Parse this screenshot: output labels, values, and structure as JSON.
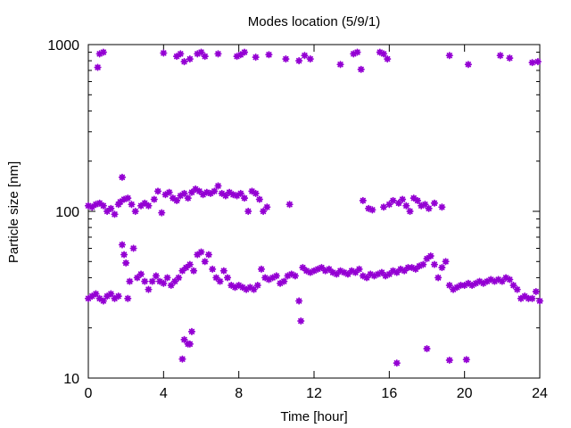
{
  "chart_data": {
    "type": "scatter",
    "title": "Modes location (5/9/1)",
    "xlabel": "Time [hour]",
    "ylabel": "Particle size [nm]",
    "xlim": [
      0,
      24
    ],
    "ylim": [
      10,
      1000
    ],
    "yscale": "log",
    "grid": false,
    "x_ticks": [
      0,
      4,
      8,
      12,
      16,
      20,
      24
    ],
    "x_tick_labels": [
      "0",
      "4",
      "8",
      "12",
      "16",
      "20",
      "24"
    ],
    "y_ticks": [
      10,
      100,
      1000
    ],
    "y_tick_labels": [
      "10",
      "100",
      "1000"
    ],
    "marker_color": "#9400d3",
    "series": [
      {
        "points": [
          [
            0.5,
            730
          ],
          [
            0.6,
            880
          ],
          [
            0.8,
            900
          ],
          [
            4.0,
            890
          ],
          [
            4.7,
            850
          ],
          [
            4.9,
            880
          ],
          [
            5.1,
            790
          ],
          [
            5.4,
            820
          ],
          [
            5.8,
            880
          ],
          [
            6.0,
            900
          ],
          [
            6.2,
            850
          ],
          [
            6.9,
            880
          ],
          [
            7.9,
            850
          ],
          [
            8.1,
            870
          ],
          [
            8.3,
            900
          ],
          [
            8.9,
            840
          ],
          [
            9.6,
            870
          ],
          [
            10.5,
            820
          ],
          [
            11.2,
            800
          ],
          [
            11.5,
            860
          ],
          [
            11.8,
            820
          ],
          [
            13.4,
            760
          ],
          [
            14.1,
            880
          ],
          [
            14.3,
            900
          ],
          [
            14.5,
            710
          ],
          [
            15.5,
            900
          ],
          [
            15.7,
            880
          ],
          [
            15.9,
            820
          ],
          [
            19.2,
            860
          ],
          [
            20.2,
            760
          ],
          [
            21.9,
            860
          ],
          [
            22.4,
            830
          ],
          [
            23.6,
            780
          ],
          [
            23.9,
            790
          ],
          [
            0.0,
            108
          ],
          [
            0.2,
            106
          ],
          [
            0.4,
            110
          ],
          [
            0.6,
            112
          ],
          [
            0.8,
            108
          ],
          [
            1.0,
            100
          ],
          [
            1.2,
            104
          ],
          [
            1.4,
            96
          ],
          [
            1.6,
            110
          ],
          [
            1.7,
            114
          ],
          [
            1.8,
            160
          ],
          [
            1.9,
            118
          ],
          [
            2.1,
            120
          ],
          [
            2.3,
            110
          ],
          [
            2.5,
            100
          ],
          [
            2.8,
            108
          ],
          [
            3.0,
            112
          ],
          [
            3.2,
            108
          ],
          [
            3.5,
            118
          ],
          [
            3.7,
            132
          ],
          [
            3.9,
            98
          ],
          [
            4.1,
            126
          ],
          [
            4.3,
            130
          ],
          [
            4.5,
            120
          ],
          [
            4.7,
            116
          ],
          [
            4.9,
            124
          ],
          [
            5.1,
            128
          ],
          [
            5.3,
            120
          ],
          [
            5.5,
            130
          ],
          [
            5.7,
            136
          ],
          [
            5.9,
            132
          ],
          [
            6.1,
            126
          ],
          [
            6.3,
            130
          ],
          [
            6.5,
            128
          ],
          [
            6.7,
            132
          ],
          [
            6.9,
            142
          ],
          [
            7.1,
            128
          ],
          [
            7.3,
            124
          ],
          [
            7.5,
            130
          ],
          [
            7.7,
            126
          ],
          [
            7.9,
            124
          ],
          [
            8.1,
            128
          ],
          [
            8.3,
            120
          ],
          [
            8.5,
            100
          ],
          [
            8.7,
            132
          ],
          [
            8.9,
            128
          ],
          [
            9.1,
            118
          ],
          [
            9.3,
            100
          ],
          [
            9.5,
            106
          ],
          [
            10.7,
            110
          ],
          [
            14.6,
            116
          ],
          [
            14.9,
            104
          ],
          [
            15.1,
            102
          ],
          [
            15.7,
            106
          ],
          [
            16.0,
            110
          ],
          [
            16.2,
            116
          ],
          [
            16.5,
            112
          ],
          [
            16.7,
            118
          ],
          [
            16.9,
            108
          ],
          [
            17.1,
            100
          ],
          [
            17.3,
            120
          ],
          [
            17.5,
            116
          ],
          [
            17.7,
            108
          ],
          [
            17.9,
            110
          ],
          [
            18.1,
            104
          ],
          [
            18.4,
            112
          ],
          [
            18.8,
            106
          ],
          [
            0.0,
            30
          ],
          [
            0.2,
            31
          ],
          [
            0.4,
            32
          ],
          [
            0.6,
            30
          ],
          [
            0.8,
            29
          ],
          [
            1.0,
            31
          ],
          [
            1.2,
            32
          ],
          [
            1.4,
            30
          ],
          [
            1.6,
            31
          ],
          [
            1.8,
            63
          ],
          [
            1.9,
            55
          ],
          [
            2.0,
            49
          ],
          [
            2.1,
            30
          ],
          [
            2.2,
            38
          ],
          [
            2.4,
            60
          ],
          [
            2.6,
            40
          ],
          [
            2.8,
            42
          ],
          [
            3.0,
            38
          ],
          [
            3.2,
            34
          ],
          [
            3.4,
            38
          ],
          [
            3.6,
            41
          ],
          [
            3.8,
            38
          ],
          [
            4.0,
            37
          ],
          [
            4.2,
            40
          ],
          [
            4.4,
            36
          ],
          [
            4.6,
            38
          ],
          [
            4.8,
            40
          ],
          [
            5.0,
            44
          ],
          [
            5.2,
            46
          ],
          [
            5.4,
            48
          ],
          [
            5.6,
            44
          ],
          [
            5.8,
            55
          ],
          [
            6.0,
            57
          ],
          [
            6.2,
            50
          ],
          [
            6.4,
            55
          ],
          [
            6.6,
            45
          ],
          [
            6.8,
            40
          ],
          [
            7.0,
            38
          ],
          [
            7.2,
            44
          ],
          [
            7.4,
            40
          ],
          [
            7.6,
            36
          ],
          [
            7.8,
            35
          ],
          [
            8.0,
            36
          ],
          [
            8.2,
            35
          ],
          [
            8.4,
            34
          ],
          [
            8.6,
            35
          ],
          [
            8.8,
            34
          ],
          [
            9.0,
            36
          ],
          [
            9.2,
            45
          ],
          [
            9.4,
            40
          ],
          [
            9.6,
            39
          ],
          [
            9.8,
            40
          ],
          [
            10.0,
            41
          ],
          [
            10.2,
            37
          ],
          [
            10.4,
            38
          ],
          [
            10.6,
            41
          ],
          [
            10.8,
            42
          ],
          [
            11.0,
            41
          ],
          [
            11.2,
            29
          ],
          [
            11.3,
            22
          ],
          [
            11.4,
            46
          ],
          [
            11.6,
            44
          ],
          [
            11.8,
            43
          ],
          [
            12.0,
            44
          ],
          [
            12.2,
            45
          ],
          [
            12.4,
            46
          ],
          [
            12.6,
            44
          ],
          [
            12.8,
            45
          ],
          [
            13.0,
            43
          ],
          [
            13.2,
            42
          ],
          [
            13.4,
            44
          ],
          [
            13.6,
            43
          ],
          [
            13.8,
            42
          ],
          [
            14.0,
            44
          ],
          [
            14.2,
            43
          ],
          [
            14.4,
            45
          ],
          [
            14.6,
            41
          ],
          [
            14.8,
            40
          ],
          [
            15.0,
            42
          ],
          [
            15.2,
            41
          ],
          [
            15.4,
            42
          ],
          [
            15.6,
            43
          ],
          [
            15.8,
            41
          ],
          [
            16.0,
            42
          ],
          [
            16.2,
            44
          ],
          [
            16.4,
            43
          ],
          [
            16.6,
            45
          ],
          [
            16.8,
            44
          ],
          [
            17.0,
            46
          ],
          [
            17.2,
            46
          ],
          [
            17.4,
            45
          ],
          [
            17.6,
            47
          ],
          [
            17.8,
            48
          ],
          [
            18.0,
            52
          ],
          [
            18.2,
            54
          ],
          [
            18.4,
            48
          ],
          [
            18.6,
            40
          ],
          [
            18.8,
            46
          ],
          [
            19.0,
            50
          ],
          [
            19.2,
            36
          ],
          [
            19.4,
            34
          ],
          [
            19.6,
            35
          ],
          [
            19.8,
            36
          ],
          [
            20.0,
            36
          ],
          [
            20.2,
            37
          ],
          [
            20.4,
            36
          ],
          [
            20.6,
            37
          ],
          [
            20.8,
            38
          ],
          [
            21.0,
            37
          ],
          [
            21.2,
            38
          ],
          [
            21.4,
            39
          ],
          [
            21.6,
            38
          ],
          [
            21.8,
            39
          ],
          [
            22.0,
            38
          ],
          [
            22.2,
            40
          ],
          [
            22.4,
            39
          ],
          [
            22.6,
            36
          ],
          [
            22.8,
            34
          ],
          [
            23.0,
            30
          ],
          [
            23.2,
            31
          ],
          [
            23.4,
            30
          ],
          [
            23.6,
            30
          ],
          [
            23.8,
            33
          ],
          [
            24.0,
            29
          ],
          [
            5.0,
            13
          ],
          [
            5.1,
            17
          ],
          [
            5.3,
            16
          ],
          [
            5.4,
            16
          ],
          [
            5.5,
            19
          ],
          [
            16.4,
            12.3
          ],
          [
            18.0,
            15
          ],
          [
            19.2,
            12.8
          ],
          [
            20.1,
            12.9
          ]
        ]
      }
    ]
  }
}
